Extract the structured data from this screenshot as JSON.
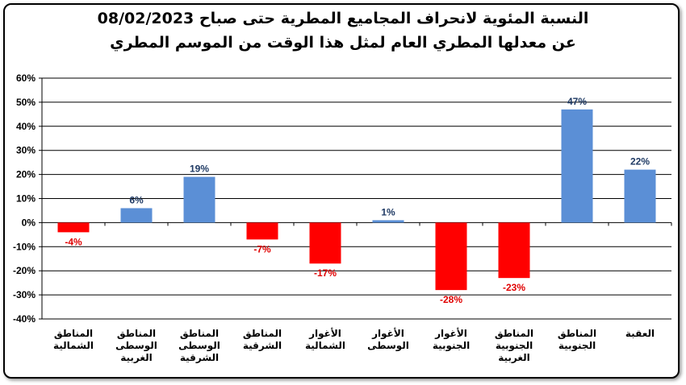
{
  "colors": {
    "positive": "#5B8FD6",
    "negative": "#FF0000",
    "positive_label": "#1F3A64",
    "negative_label": "#E00000",
    "grid": "#000000"
  },
  "chart_data": {
    "type": "bar",
    "title_line1": "النسبة المئوية لانحراف المجاميع المطرية حتى صباح 08/02/2023",
    "title_line2": "عن معدلها المطري العام لمثل هذا الوقت من الموسم المطري",
    "xlabel": "",
    "ylabel": "",
    "ylim": [
      -40,
      60
    ],
    "y_tick_step": 10,
    "y_tick_labels": [
      "60%",
      "50%",
      "40%",
      "30%",
      "20%",
      "10%",
      "0%",
      "-10%",
      "-20%",
      "-30%",
      "-40%"
    ],
    "grid": true,
    "legend": "none",
    "categories": [
      [
        "المناطق",
        "الشمالية"
      ],
      [
        "المناطق",
        "الوسطى",
        "الغربية"
      ],
      [
        "المناطق",
        "الوسطى",
        "الشرقية"
      ],
      [
        "المناطق",
        "الشرقية"
      ],
      [
        "الأغوار",
        "الشمالية"
      ],
      [
        "الأغوار",
        "الوسطى"
      ],
      [
        "الأغوار",
        "الجنوبية"
      ],
      [
        "المناطق",
        "الجنوبية",
        "الغربية"
      ],
      [
        "المناطق",
        "الجنوبية"
      ],
      [
        "العقبة"
      ]
    ],
    "values": [
      -4,
      6,
      19,
      -7,
      -17,
      1,
      -28,
      -23,
      47,
      22
    ],
    "value_labels": [
      "-4%",
      "6%",
      "19%",
      "-7%",
      "-17%",
      "1%",
      "-28%",
      "-23%",
      "47%",
      "22%"
    ]
  }
}
